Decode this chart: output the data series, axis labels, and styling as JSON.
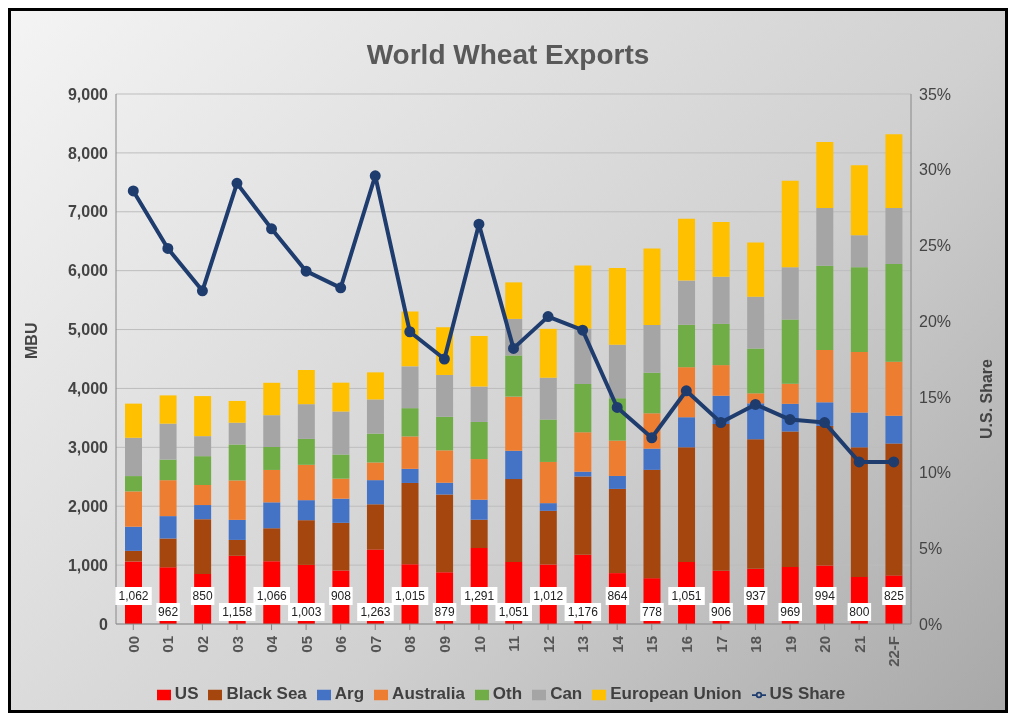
{
  "chart_data": {
    "type": "bar",
    "title": "World Wheat Exports",
    "ylabel": "MBU",
    "y2label": "U.S. Share",
    "categories": [
      "00",
      "01",
      "02",
      "03",
      "04",
      "05",
      "06",
      "07",
      "08",
      "09",
      "10",
      "11",
      "12",
      "13",
      "14",
      "15",
      "16",
      "17",
      "18",
      "19",
      "20",
      "21",
      "22-F"
    ],
    "stacked": true,
    "grid": "y",
    "legend": "bottom",
    "marker": "circle",
    "ylim": [
      0,
      9000
    ],
    "yticks": [
      {
        "value": 0,
        "label": "0"
      },
      {
        "value": 1000,
        "label": "1,000"
      },
      {
        "value": 2000,
        "label": "2,000"
      },
      {
        "value": 3000,
        "label": "3,000"
      },
      {
        "value": 4000,
        "label": "4,000"
      },
      {
        "value": 5000,
        "label": "5,000"
      },
      {
        "value": 6000,
        "label": "6,000"
      },
      {
        "value": 7000,
        "label": "7,000"
      },
      {
        "value": 8000,
        "label": "8,000"
      },
      {
        "value": 9000,
        "label": "9,000"
      }
    ],
    "y2lim": [
      0,
      35
    ],
    "y2ticks": [
      {
        "value": 0,
        "label": "0%"
      },
      {
        "value": 5,
        "label": "5%"
      },
      {
        "value": 10,
        "label": "10%"
      },
      {
        "value": 15,
        "label": "15%"
      },
      {
        "value": 20,
        "label": "20%"
      },
      {
        "value": 25,
        "label": "25%"
      },
      {
        "value": 30,
        "label": "30%"
      },
      {
        "value": 35,
        "label": "35%"
      }
    ],
    "series": [
      {
        "name": "US",
        "color": "#ff0000",
        "values": [
          1062,
          962,
          850,
          1158,
          1066,
          1003,
          908,
          1263,
          1015,
          879,
          1291,
          1051,
          1012,
          1176,
          864,
          778,
          1051,
          906,
          937,
          969,
          994,
          800,
          825
        ],
        "value_labels": [
          "1,062",
          "962",
          "850",
          "1,158",
          "1,066",
          "1,003",
          "908",
          "1,263",
          "1,015",
          "879",
          "1,291",
          "1,051",
          "1,012",
          "1,176",
          "864",
          "778",
          "1,051",
          "906",
          "937",
          "969",
          "994",
          "800",
          "825"
        ]
      },
      {
        "name": "Black Sea",
        "color": "#a5460f",
        "values": [
          180,
          490,
          930,
          270,
          560,
          760,
          810,
          770,
          1380,
          1320,
          480,
          1410,
          910,
          1330,
          1430,
          1840,
          1950,
          2490,
          2200,
          2300,
          2370,
          2200,
          2240
        ]
      },
      {
        "name": "Arg",
        "color": "#4472c4",
        "values": [
          410,
          380,
          240,
          340,
          440,
          340,
          410,
          410,
          240,
          200,
          340,
          480,
          130,
          80,
          220,
          360,
          510,
          480,
          610,
          470,
          400,
          590,
          470
        ]
      },
      {
        "name": "Australia",
        "color": "#ed7d31",
        "values": [
          600,
          610,
          340,
          670,
          550,
          600,
          340,
          300,
          550,
          550,
          690,
          920,
          700,
          670,
          600,
          600,
          850,
          520,
          170,
          340,
          890,
          1030,
          920
        ]
      },
      {
        "name": "Oth",
        "color": "#70ad47",
        "values": [
          260,
          350,
          490,
          610,
          390,
          440,
          410,
          490,
          480,
          570,
          630,
          700,
          720,
          820,
          720,
          690,
          720,
          700,
          760,
          1090,
          1430,
          1440,
          1660
        ]
      },
      {
        "name": "Can",
        "color": "#a5a5a5",
        "values": [
          650,
          610,
          340,
          370,
          540,
          590,
          730,
          580,
          710,
          710,
          600,
          620,
          710,
          940,
          910,
          810,
          750,
          800,
          880,
          890,
          980,
          540,
          950
        ]
      },
      {
        "name": "European Union",
        "color": "#ffc000",
        "values": [
          580,
          480,
          680,
          370,
          550,
          580,
          490,
          460,
          930,
          810,
          860,
          620,
          830,
          1070,
          1300,
          1300,
          1050,
          930,
          920,
          1470,
          1120,
          1190,
          1250
        ]
      },
      {
        "name": "US Share",
        "type": "line",
        "axis": "y2",
        "color": "#1f3c6e",
        "values": [
          28.6,
          24.8,
          22.0,
          29.1,
          26.1,
          23.3,
          22.2,
          29.6,
          19.3,
          17.5,
          26.4,
          18.2,
          20.3,
          19.4,
          14.3,
          12.3,
          15.4,
          13.3,
          14.5,
          13.5,
          13.3,
          10.7,
          10.7
        ]
      }
    ]
  }
}
